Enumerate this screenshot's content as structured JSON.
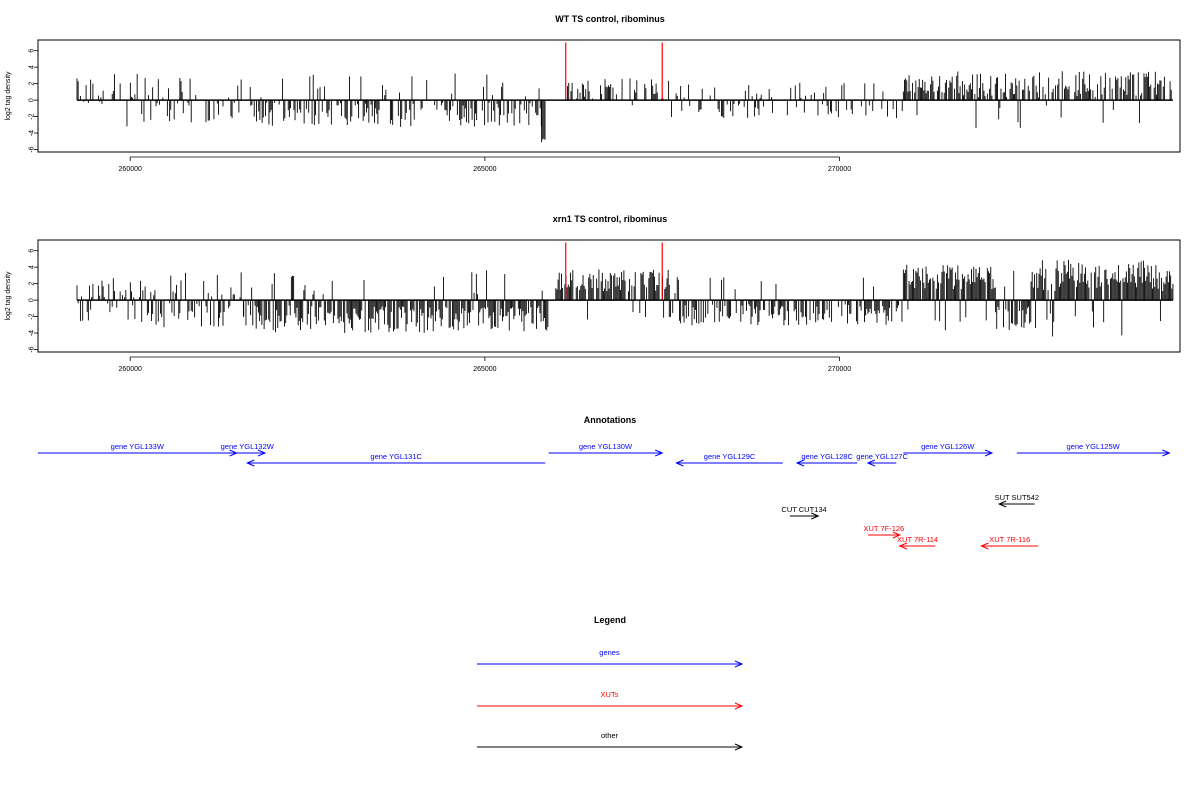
{
  "colors": {
    "genes": "#0000ff",
    "xuts": "#ff0000",
    "other": "#000000",
    "peak": "#ff0000",
    "bars": "#000000"
  },
  "chart_data": [
    {
      "type": "bar",
      "title": "WT TS control, ribominus",
      "ylabel": "log2 tag density",
      "xlim": [
        258700,
        274800
      ],
      "ylim": [
        -6.3,
        7.3
      ],
      "xticks": [
        260000,
        265000,
        270000
      ],
      "yticks": [
        -6,
        -4,
        -2,
        0,
        2,
        4,
        6
      ],
      "tag_bars_note": "dense per-position tag bars (estimated)",
      "peaks": [
        266140,
        267500
      ],
      "peak_height": 7,
      "seed": 17,
      "segments": [
        {
          "from": 259250,
          "to": 260300,
          "mean": 1.6,
          "spread": 1.6,
          "density": 0.35,
          "dir": "both"
        },
        {
          "from": 260300,
          "to": 261700,
          "mean": -1.5,
          "spread": 1.2,
          "density": 0.45,
          "dir": "both"
        },
        {
          "from": 261700,
          "to": 265800,
          "mean": -1.8,
          "spread": 1.5,
          "density": 0.6,
          "dir": "neg"
        },
        {
          "from": 265800,
          "to": 265850,
          "mean": -5.0,
          "spread": 0.4,
          "density": 1.0,
          "dir": "neg"
        },
        {
          "from": 266150,
          "to": 267600,
          "mean": 1.4,
          "spread": 1.3,
          "density": 0.5,
          "dir": "pos"
        },
        {
          "from": 267600,
          "to": 270100,
          "mean": -1.2,
          "spread": 1.0,
          "density": 0.35,
          "dir": "both"
        },
        {
          "from": 270100,
          "to": 270900,
          "mean": -1.4,
          "spread": 1.0,
          "density": 0.4,
          "dir": "neg"
        },
        {
          "from": 270900,
          "to": 274700,
          "mean": 1.9,
          "spread": 1.6,
          "density": 0.75,
          "dir": "pos"
        }
      ]
    },
    {
      "type": "bar",
      "title": "xrn1 TS control, ribominus",
      "ylabel": "log2 tag density",
      "xlim": [
        258700,
        274800
      ],
      "ylim": [
        -6.3,
        7.3
      ],
      "xticks": [
        260000,
        265000,
        270000
      ],
      "yticks": [
        -6,
        -4,
        -2,
        0,
        2,
        4,
        6
      ],
      "tag_bars_note": "dense per-position tag bars (estimated)",
      "peaks": [
        266140,
        267500
      ],
      "peak_height": 7,
      "seed": 91,
      "segments": [
        {
          "from": 259250,
          "to": 260300,
          "mean": 1.7,
          "spread": 1.4,
          "density": 0.55,
          "dir": "both"
        },
        {
          "from": 260300,
          "to": 261600,
          "mean": -1.8,
          "spread": 1.6,
          "density": 0.6,
          "dir": "both"
        },
        {
          "from": 261600,
          "to": 265900,
          "mean": -2.3,
          "spread": 1.7,
          "density": 0.85,
          "dir": "neg"
        },
        {
          "from": 266000,
          "to": 267600,
          "mean": 2.4,
          "spread": 1.4,
          "density": 0.85,
          "dir": "pos"
        },
        {
          "from": 267600,
          "to": 270900,
          "mean": -1.8,
          "spread": 1.3,
          "density": 0.6,
          "dir": "neg"
        },
        {
          "from": 270900,
          "to": 272200,
          "mean": 2.7,
          "spread": 1.6,
          "density": 0.95,
          "dir": "pos"
        },
        {
          "from": 272200,
          "to": 272700,
          "mean": -2.2,
          "spread": 1.5,
          "density": 0.8,
          "dir": "neg"
        },
        {
          "from": 272700,
          "to": 274700,
          "mean": 3.0,
          "spread": 1.9,
          "density": 0.95,
          "dir": "pos"
        }
      ]
    },
    {
      "type": "annotation-track",
      "title": "Annotations",
      "features": [
        {
          "label": "gene YGL133W",
          "start": 258700,
          "end": 261500,
          "strand": "+",
          "class": "genes",
          "row": 0
        },
        {
          "label": "gene YGL132W",
          "start": 261400,
          "end": 261900,
          "strand": "+",
          "class": "genes",
          "row": 0
        },
        {
          "label": "gene YGL131C",
          "start": 261650,
          "end": 265850,
          "strand": "-",
          "class": "genes",
          "row": 1
        },
        {
          "label": "gene YGL130W",
          "start": 265900,
          "end": 267500,
          "strand": "+",
          "class": "genes",
          "row": 0
        },
        {
          "label": "gene YGL129C",
          "start": 267700,
          "end": 269200,
          "strand": "-",
          "class": "genes",
          "row": 1
        },
        {
          "label": "gene YGL128C",
          "start": 269400,
          "end": 270250,
          "strand": "-",
          "class": "genes",
          "row": 1
        },
        {
          "label": "gene YGL127C",
          "start": 270400,
          "end": 270800,
          "strand": "-",
          "class": "genes",
          "row": 1
        },
        {
          "label": "gene YGL126W",
          "start": 270900,
          "end": 272150,
          "strand": "+",
          "class": "genes",
          "row": 0
        },
        {
          "label": "gene YGL125W",
          "start": 272500,
          "end": 274650,
          "strand": "+",
          "class": "genes",
          "row": 0
        },
        {
          "label": "SUT SUT542",
          "start": 272250,
          "end": 272750,
          "strand": "-",
          "class": "other",
          "row": 4
        },
        {
          "label": "CUT CUT134",
          "start": 269300,
          "end": 269700,
          "strand": "+",
          "class": "other",
          "row": 5
        },
        {
          "label": "XUT 7F-126",
          "start": 270400,
          "end": 270850,
          "strand": "+",
          "class": "xuts",
          "row": 7
        },
        {
          "label": "XUT 7R-114",
          "start": 270850,
          "end": 271350,
          "strand": "-",
          "class": "xuts",
          "row": 8
        },
        {
          "label": "XUT 7R-116",
          "start": 272000,
          "end": 272800,
          "strand": "-",
          "class": "xuts",
          "row": 8
        }
      ]
    }
  ],
  "legend": {
    "title": "Legend",
    "items": [
      {
        "label": "genes",
        "class": "genes"
      },
      {
        "label": "XUTs",
        "class": "xuts"
      },
      {
        "label": "other",
        "class": "other"
      }
    ]
  }
}
